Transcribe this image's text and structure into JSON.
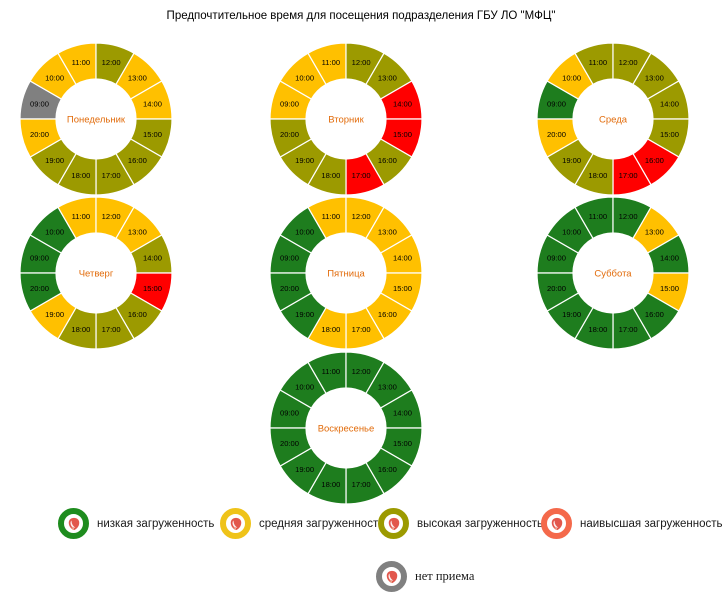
{
  "title": "Предпочтительное время для посещения подразделения ГБУ ЛО \"МФЦ\"",
  "colors": {
    "low": "#1E7D1E",
    "medium": "#FFC000",
    "high": "#9C9A00",
    "highest": "#FF0000",
    "none": "#808080",
    "day_label": "#E26B0A",
    "hour_label": "#000000",
    "legend_ring_low": "#1E8C1E",
    "legend_ring_medium": "#EFC319",
    "legend_ring_high": "#9C9A00",
    "legend_ring_highest": "#F4694B",
    "legend_ring_none": "#808080",
    "logo": "#E2574C"
  },
  "chart_data": {
    "type": "donut-grid",
    "description": "7 donut charts (one per weekday), 12 hourly sectors each, clockwise from top: 12:00-20:00 then 09:00-11:00; sector color encodes load level",
    "hours": [
      "09:00",
      "10:00",
      "11:00",
      "12:00",
      "13:00",
      "14:00",
      "15:00",
      "16:00",
      "17:00",
      "18:00",
      "19:00",
      "20:00"
    ],
    "days": [
      {
        "name": "Понедельник",
        "levels": [
          "none",
          "medium",
          "medium",
          "high",
          "medium",
          "medium",
          "high",
          "high",
          "high",
          "high",
          "high",
          "medium"
        ]
      },
      {
        "name": "Вторник",
        "levels": [
          "medium",
          "medium",
          "medium",
          "high",
          "high",
          "highest",
          "highest",
          "high",
          "highest",
          "high",
          "high",
          "high"
        ]
      },
      {
        "name": "Среда",
        "levels": [
          "low",
          "medium",
          "high",
          "high",
          "high",
          "high",
          "high",
          "highest",
          "highest",
          "high",
          "high",
          "medium"
        ]
      },
      {
        "name": "Четверг",
        "levels": [
          "low",
          "low",
          "medium",
          "medium",
          "medium",
          "high",
          "highest",
          "high",
          "high",
          "high",
          "medium",
          "low"
        ]
      },
      {
        "name": "Пятница",
        "levels": [
          "low",
          "low",
          "medium",
          "medium",
          "medium",
          "medium",
          "medium",
          "medium",
          "medium",
          "medium",
          "low",
          "low"
        ]
      },
      {
        "name": "Суббота",
        "levels": [
          "low",
          "low",
          "low",
          "low",
          "medium",
          "low",
          "medium",
          "low",
          "low",
          "low",
          "low",
          "low"
        ]
      },
      {
        "name": "Воскресенье",
        "levels": [
          "low",
          "low",
          "low",
          "low",
          "low",
          "low",
          "low",
          "low",
          "low",
          "low",
          "low",
          "low"
        ]
      }
    ]
  },
  "legend": {
    "items": [
      {
        "level": "low",
        "label": "низкая загруженность"
      },
      {
        "level": "medium",
        "label": "средняя загруженность"
      },
      {
        "level": "high",
        "label": "высокая загруженность"
      },
      {
        "level": "highest",
        "label": "наивысшая загруженность"
      }
    ],
    "no_reception": {
      "level": "none",
      "label": "нет приема"
    }
  }
}
